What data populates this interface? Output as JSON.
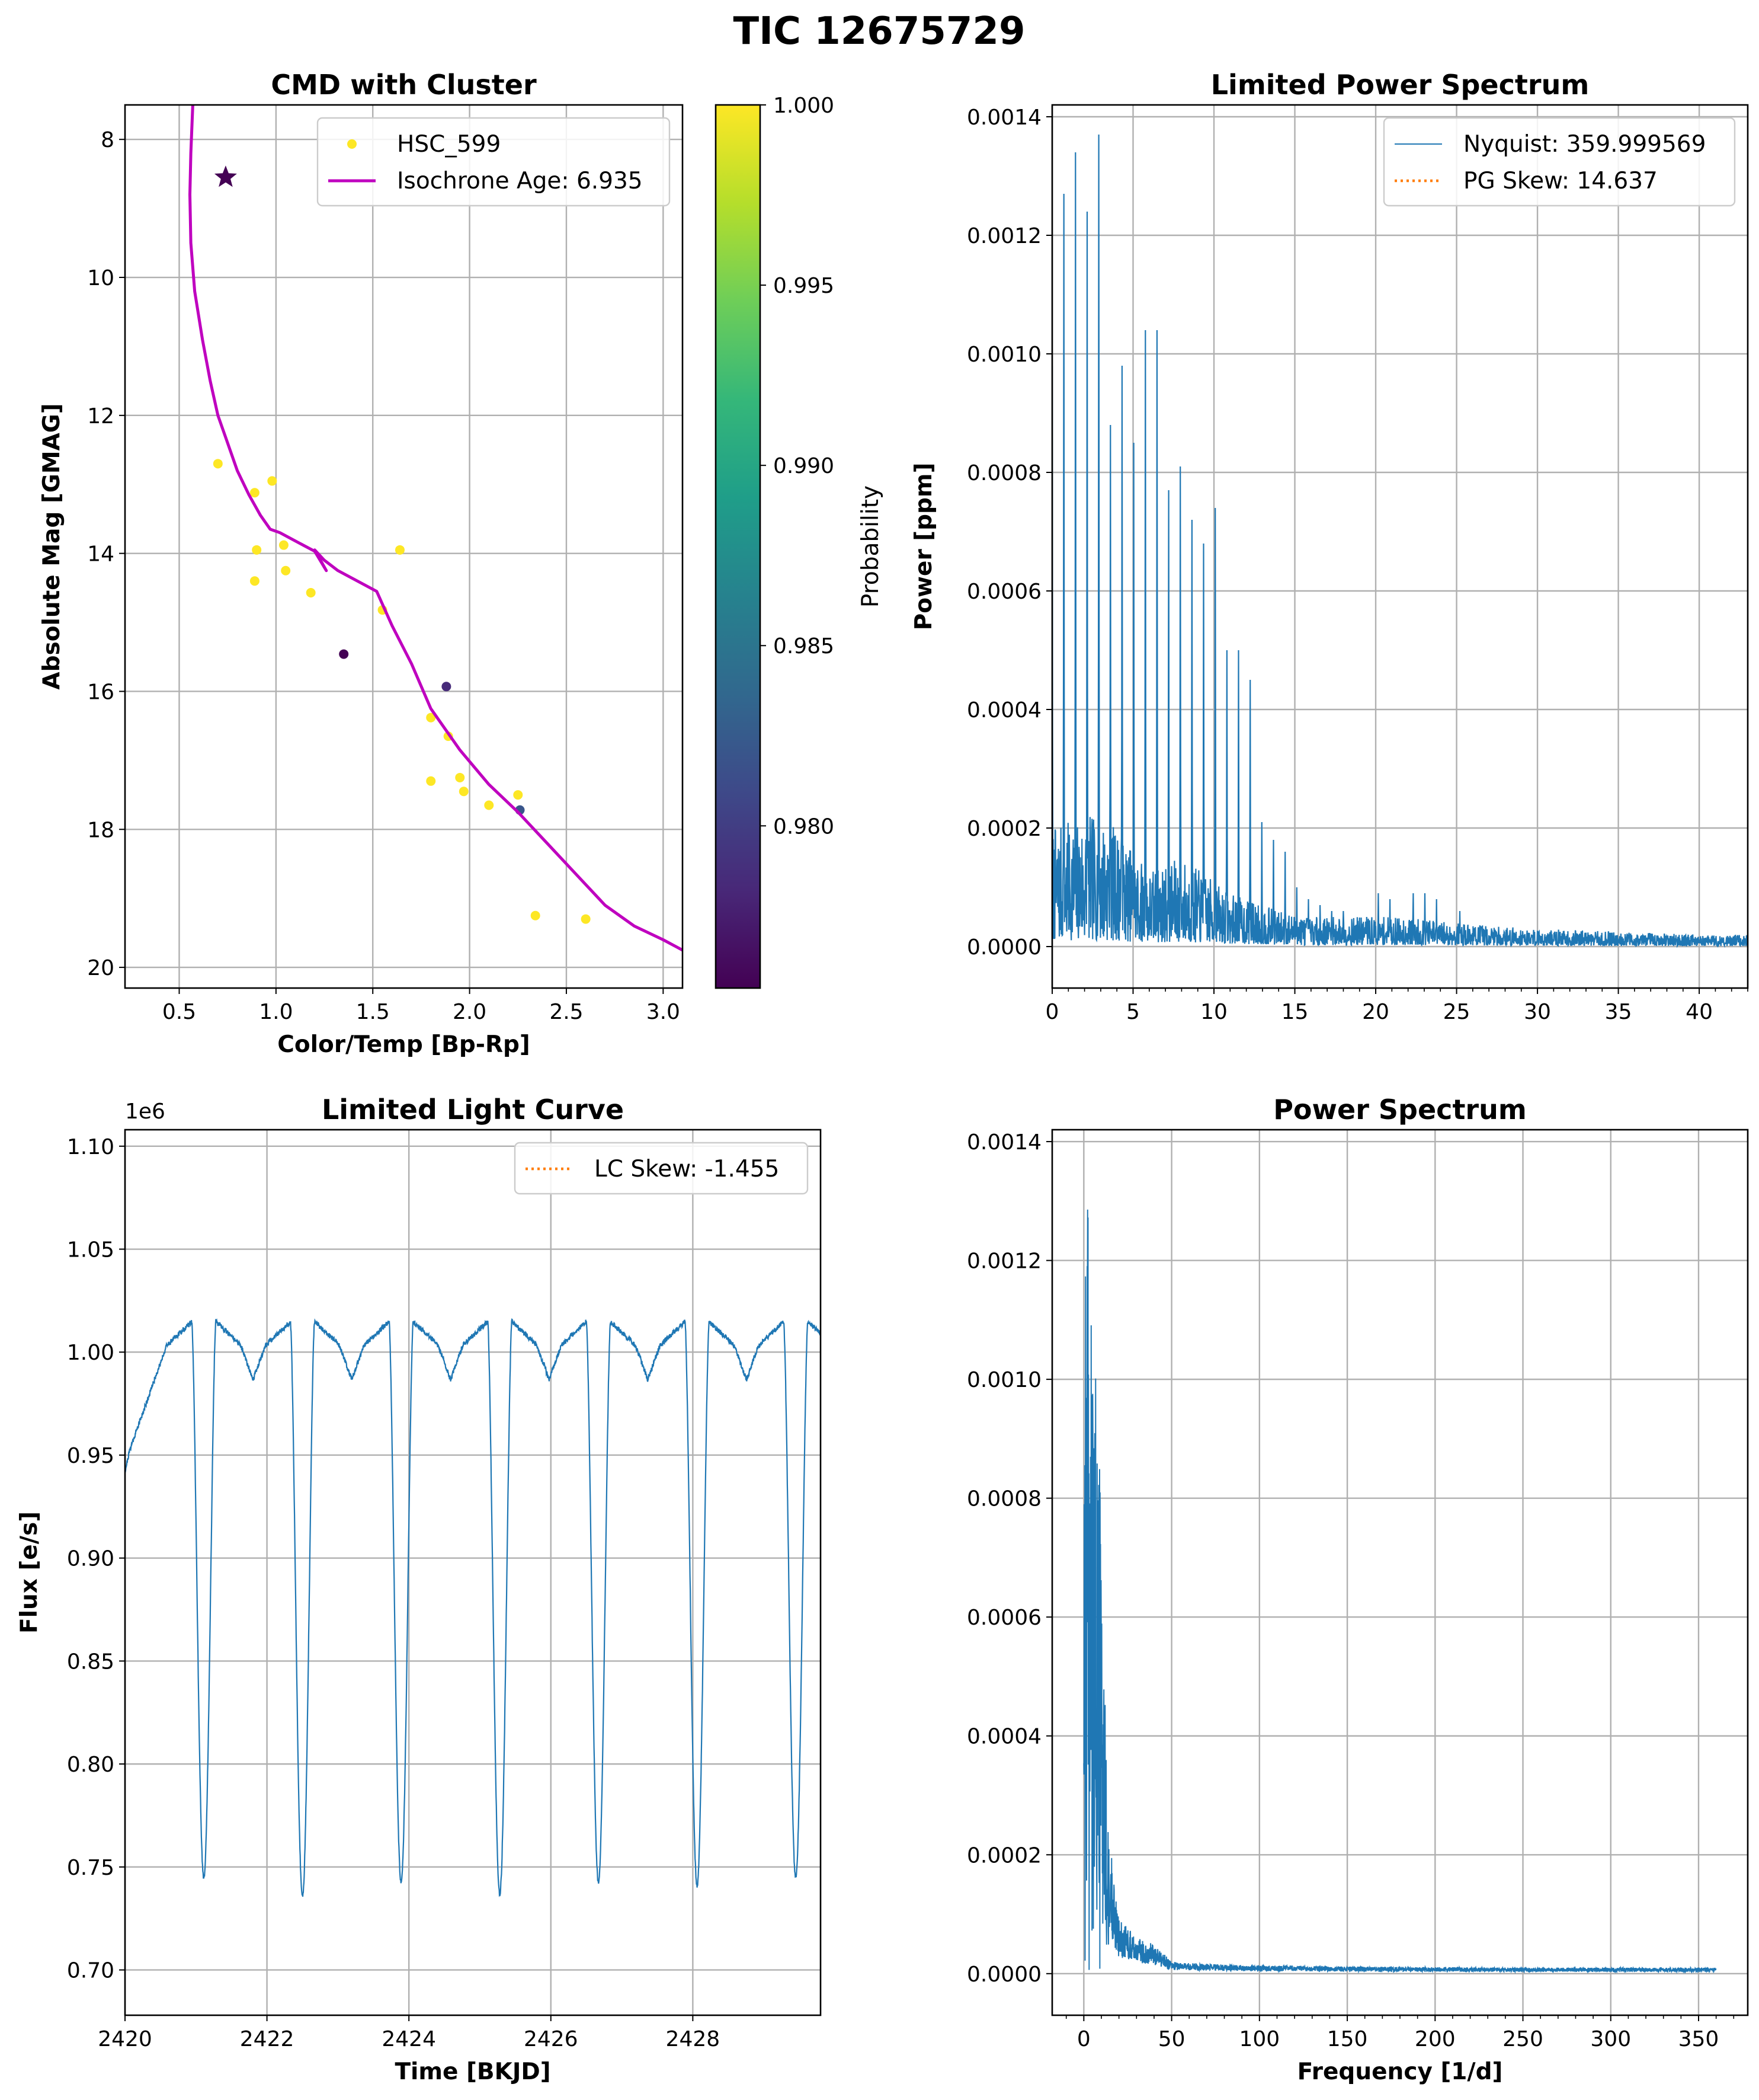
{
  "figure": {
    "title": "TIC 12675729"
  },
  "colors": {
    "series_blue": "#1f77b4",
    "skew_orange": "#ff7f0e",
    "isochrone_magenta": "#bf00bf",
    "grid": "#b0b0b0",
    "viridis": [
      "#440154",
      "#482878",
      "#3e4989",
      "#31688e",
      "#26828e",
      "#1f9e89",
      "#35b779",
      "#6ece58",
      "#b5de2b",
      "#fde725"
    ]
  },
  "chart_data": [
    {
      "id": "cmd",
      "type": "scatter",
      "title": "CMD with Cluster",
      "xlabel": "Color/Temp [Bp-Rp]",
      "ylabel": "Absolute Mag [GMAG]",
      "xlim": [
        0.22,
        3.1
      ],
      "ylim": [
        20.3,
        7.5
      ],
      "y_inverted": true,
      "xticks": [
        0.5,
        1.0,
        1.5,
        2.0,
        2.5,
        3.0
      ],
      "xtick_labels": [
        "0.5",
        "1.0",
        "1.5",
        "2.0",
        "2.5",
        "3.0"
      ],
      "yticks": [
        8,
        10,
        12,
        14,
        16,
        18,
        20
      ],
      "ytick_labels": [
        "8",
        "10",
        "12",
        "14",
        "16",
        "18",
        "20"
      ],
      "grid": true,
      "legend": {
        "position": "top-right",
        "entries": [
          {
            "label": "HSC_599",
            "kind": "point",
            "color": "#fde725"
          },
          {
            "label": "Isochrone Age: 6.935",
            "kind": "line",
            "color": "#bf00bf"
          }
        ]
      },
      "colorbar": {
        "label": "Probability",
        "range": [
          0.9755,
          1.0
        ],
        "ticks": [
          0.98,
          0.985,
          0.99,
          0.995,
          1.0
        ],
        "tick_labels": [
          "0.980",
          "0.985",
          "0.990",
          "0.995",
          "1.000"
        ]
      },
      "cluster_points": [
        {
          "x": 0.7,
          "y": 12.7,
          "p": 1.0
        },
        {
          "x": 0.89,
          "y": 13.12,
          "p": 1.0
        },
        {
          "x": 0.98,
          "y": 12.95,
          "p": 1.0
        },
        {
          "x": 0.9,
          "y": 13.95,
          "p": 1.0
        },
        {
          "x": 0.89,
          "y": 14.4,
          "p": 1.0
        },
        {
          "x": 1.04,
          "y": 13.88,
          "p": 1.0
        },
        {
          "x": 1.05,
          "y": 14.25,
          "p": 1.0
        },
        {
          "x": 1.18,
          "y": 14.57,
          "p": 1.0
        },
        {
          "x": 1.64,
          "y": 13.95,
          "p": 1.0
        },
        {
          "x": 1.55,
          "y": 14.82,
          "p": 1.0
        },
        {
          "x": 1.35,
          "y": 15.46,
          "p": 0.9755
        },
        {
          "x": 1.88,
          "y": 15.93,
          "p": 0.9785
        },
        {
          "x": 1.8,
          "y": 16.38,
          "p": 1.0
        },
        {
          "x": 1.89,
          "y": 16.65,
          "p": 1.0
        },
        {
          "x": 1.8,
          "y": 17.3,
          "p": 1.0
        },
        {
          "x": 1.95,
          "y": 17.25,
          "p": 1.0
        },
        {
          "x": 1.97,
          "y": 17.45,
          "p": 1.0
        },
        {
          "x": 2.1,
          "y": 17.65,
          "p": 1.0
        },
        {
          "x": 2.25,
          "y": 17.5,
          "p": 1.0
        },
        {
          "x": 2.26,
          "y": 17.72,
          "p": 0.982
        },
        {
          "x": 2.34,
          "y": 19.25,
          "p": 1.0
        },
        {
          "x": 2.6,
          "y": 19.3,
          "p": 1.0
        }
      ],
      "target_star": {
        "x": 0.74,
        "y": 8.55,
        "p": 0.9755
      },
      "isochrone": {
        "x": [
          0.57,
          0.56,
          0.555,
          0.56,
          0.58,
          0.62,
          0.66,
          0.7,
          0.75,
          0.8,
          0.86,
          0.92,
          0.97,
          1.02,
          1.1,
          1.2,
          1.26,
          1.2,
          1.25,
          1.32,
          1.42,
          1.52,
          1.6,
          1.7,
          1.8,
          1.95,
          2.1,
          2.25,
          2.4,
          2.55,
          2.7,
          2.85,
          3.0,
          3.1
        ],
        "y": [
          7.5,
          8.2,
          8.8,
          9.5,
          10.2,
          10.9,
          11.5,
          12.0,
          12.4,
          12.8,
          13.15,
          13.45,
          13.65,
          13.7,
          13.82,
          13.97,
          14.25,
          13.95,
          14.1,
          14.25,
          14.4,
          14.55,
          15.05,
          15.6,
          16.25,
          16.85,
          17.35,
          17.75,
          18.2,
          18.65,
          19.1,
          19.4,
          19.6,
          19.75
        ]
      }
    },
    {
      "id": "limited_ps",
      "type": "line",
      "title": "Limited Power Spectrum",
      "xlabel": "",
      "ylabel": "Power [ppm]",
      "xlim": [
        0,
        43
      ],
      "ylim": [
        -7e-05,
        0.00142
      ],
      "xticks": [
        0,
        5,
        10,
        15,
        20,
        25,
        30,
        35,
        40
      ],
      "xtick_labels": [
        "0",
        "5",
        "10",
        "15",
        "20",
        "25",
        "30",
        "35",
        "40"
      ],
      "yticks": [
        0.0,
        0.0002,
        0.0004,
        0.0006,
        0.0008,
        0.001,
        0.0012,
        0.0014
      ],
      "ytick_labels": [
        "0.0000",
        "0.0002",
        "0.0004",
        "0.0006",
        "0.0008",
        "0.0010",
        "0.0012",
        "0.0014"
      ],
      "grid": true,
      "legend": {
        "position": "top-right",
        "entries": [
          {
            "label": "Nyquist: 359.999569",
            "kind": "line",
            "color": "#1f77b4"
          },
          {
            "label": "PG Skew: 14.637",
            "kind": "dotted",
            "color": "#ff7f0e"
          }
        ]
      },
      "peaks": {
        "spacing": 0.72,
        "freq": [
          0.0,
          0.72,
          1.44,
          2.16,
          2.88,
          3.6,
          4.32,
          5.04,
          5.76,
          6.48,
          7.2,
          7.92,
          8.64,
          9.36,
          10.08,
          10.8,
          11.52,
          12.24,
          12.96,
          13.68,
          14.4,
          15.12,
          15.84,
          16.56,
          17.28,
          18.0,
          19.44,
          20.16,
          20.88,
          22.32,
          23.04,
          23.76,
          25.2
        ],
        "power": [
          0.00098,
          0.00127,
          0.00134,
          0.00124,
          0.00137,
          0.00088,
          0.00098,
          0.00085,
          0.00104,
          0.00104,
          0.00077,
          0.00081,
          0.00072,
          0.00068,
          0.00074,
          0.0005,
          0.0005,
          0.00045,
          0.00021,
          0.00018,
          0.00016,
          0.0001,
          8e-05,
          7e-05,
          6e-05,
          6e-05,
          5e-05,
          9e-05,
          8e-05,
          9e-05,
          9e-05,
          8e-05,
          6e-05
        ]
      },
      "noise_floor": {
        "freq": [
          0,
          1,
          2,
          3,
          4,
          5,
          6,
          7,
          8,
          9,
          10,
          11,
          12,
          14,
          16,
          18,
          20,
          22,
          25,
          30,
          35,
          40,
          43
        ],
        "power": [
          0.0002,
          0.00021,
          0.00022,
          0.00022,
          0.0002,
          0.00016,
          0.00013,
          0.00014,
          0.00015,
          0.00013,
          0.00011,
          9e-05,
          8e-05,
          6e-05,
          5e-05,
          5e-05,
          5e-05,
          5e-05,
          4e-05,
          3e-05,
          2.5e-05,
          2e-05,
          2e-05
        ]
      }
    },
    {
      "id": "light_curve",
      "type": "line",
      "title": "Limited Light Curve",
      "xlabel": "Time [BKJD]",
      "ylabel": "Flux [e/s]",
      "offset_label": "1e6",
      "xlim": [
        2420.0,
        2429.8
      ],
      "ylim": [
        0.678,
        1.108
      ],
      "xticks": [
        2420,
        2422,
        2424,
        2426,
        2428
      ],
      "xtick_labels": [
        "2420",
        "2422",
        "2424",
        "2426",
        "2428"
      ],
      "yticks": [
        0.7,
        0.75,
        0.8,
        0.85,
        0.9,
        0.95,
        1.0,
        1.05,
        1.1
      ],
      "ytick_labels": [
        "0.70",
        "0.75",
        "0.80",
        "0.85",
        "0.90",
        "0.95",
        "1.00",
        "1.05",
        "1.10"
      ],
      "grid": true,
      "legend": {
        "position": "top-right",
        "entries": [
          {
            "label": "LC Skew: -1.455",
            "kind": "dotted",
            "color": "#ff7f0e"
          }
        ]
      },
      "eclipse_times": [
        2421.11,
        2422.5,
        2423.89,
        2425.28,
        2426.67,
        2428.06,
        2429.45
      ],
      "eclipse_minimum": [
        0.712,
        0.703,
        0.71,
        0.704,
        0.71,
        0.708,
        0.712
      ],
      "period": 1.39,
      "max_flux": 1.02,
      "eclipse_half_width": 0.17
    },
    {
      "id": "power_spectrum",
      "type": "line",
      "title": "Power Spectrum",
      "xlabel": "Frequency [1/d]",
      "ylabel": "",
      "xlim": [
        -18,
        378
      ],
      "ylim": [
        -7e-05,
        0.00142
      ],
      "xticks": [
        0,
        50,
        100,
        150,
        200,
        250,
        300,
        350
      ],
      "xtick_labels": [
        "0",
        "50",
        "100",
        "150",
        "200",
        "250",
        "300",
        "350"
      ],
      "yticks": [
        0.0,
        0.0002,
        0.0004,
        0.0006,
        0.0008,
        0.001,
        0.0012,
        0.0014
      ],
      "ytick_labels": [
        "0.0000",
        "0.0002",
        "0.0004",
        "0.0006",
        "0.0008",
        "0.0010",
        "0.0012",
        "0.0014"
      ],
      "grid": true,
      "envelope": {
        "freq": [
          0,
          1,
          2,
          3,
          5,
          7,
          8,
          10,
          11,
          12,
          14,
          16,
          18,
          20,
          25,
          30,
          40,
          50,
          80,
          150,
          250,
          360
        ],
        "power": [
          0.00129,
          0.00135,
          0.00137,
          0.00132,
          0.00098,
          0.00104,
          0.00102,
          0.00074,
          0.00071,
          0.00048,
          0.00022,
          0.0002,
          0.00013,
          9e-05,
          8e-05,
          6e-05,
          5e-05,
          2e-05,
          1.5e-05,
          1.2e-05,
          1e-05,
          1e-05
        ]
      }
    }
  ]
}
